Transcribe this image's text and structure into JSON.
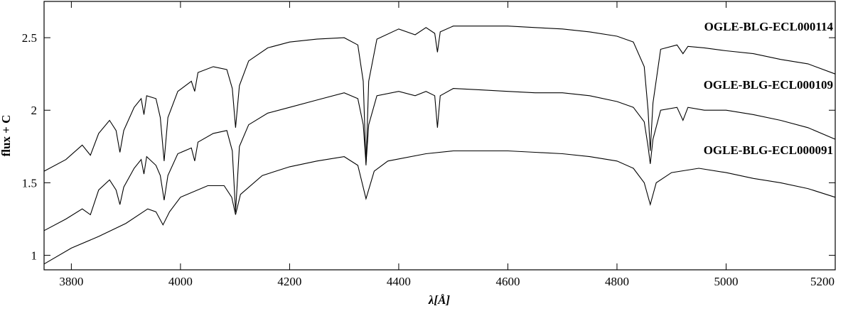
{
  "chart_data": {
    "type": "line",
    "xlabel": "λ[Å]",
    "ylabel": "flux + C",
    "xlim": [
      3750,
      5200
    ],
    "ylim": [
      0.9,
      2.75
    ],
    "xticks": [
      3800,
      4000,
      4200,
      4400,
      4600,
      4800,
      5000,
      5200
    ],
    "yticks": [
      1,
      1.5,
      2,
      2.5
    ],
    "series": [
      {
        "name": "OGLE-BLG-ECL000114",
        "color": "#000000",
        "x": [
          3750,
          3790,
          3820,
          3835,
          3850,
          3870,
          3882,
          3889,
          3896,
          3915,
          3928,
          3933,
          3938,
          3955,
          3963,
          3970,
          3977,
          3995,
          4020,
          4026,
          4032,
          4060,
          4085,
          4095,
          4101,
          4108,
          4125,
          4160,
          4200,
          4250,
          4300,
          4325,
          4335,
          4340,
          4345,
          4360,
          4400,
          4430,
          4450,
          4466,
          4471,
          4476,
          4500,
          4550,
          4600,
          4650,
          4700,
          4750,
          4800,
          4830,
          4850,
          4857,
          4861,
          4866,
          4880,
          4910,
          4921,
          4930,
          4960,
          5000,
          5050,
          5100,
          5150,
          5200
        ],
        "values": [
          1.58,
          1.66,
          1.76,
          1.69,
          1.84,
          1.93,
          1.86,
          1.71,
          1.86,
          2.02,
          2.08,
          1.97,
          2.1,
          2.08,
          1.95,
          1.65,
          1.95,
          2.13,
          2.2,
          2.13,
          2.26,
          2.3,
          2.28,
          2.15,
          1.88,
          2.17,
          2.34,
          2.43,
          2.47,
          2.49,
          2.5,
          2.45,
          2.2,
          1.62,
          2.2,
          2.49,
          2.56,
          2.52,
          2.57,
          2.53,
          2.4,
          2.54,
          2.58,
          2.58,
          2.58,
          2.57,
          2.56,
          2.54,
          2.51,
          2.47,
          2.3,
          2.0,
          1.72,
          2.05,
          2.42,
          2.45,
          2.39,
          2.44,
          2.43,
          2.41,
          2.39,
          2.35,
          2.32,
          2.25
        ]
      },
      {
        "name": "OGLE-BLG-ECL000109",
        "color": "#000000",
        "x": [
          3750,
          3790,
          3820,
          3835,
          3850,
          3870,
          3882,
          3889,
          3896,
          3915,
          3928,
          3933,
          3938,
          3955,
          3963,
          3970,
          3977,
          3995,
          4020,
          4026,
          4032,
          4060,
          4085,
          4095,
          4101,
          4108,
          4125,
          4160,
          4200,
          4250,
          4300,
          4325,
          4335,
          4340,
          4345,
          4360,
          4400,
          4430,
          4450,
          4466,
          4471,
          4476,
          4500,
          4550,
          4600,
          4650,
          4700,
          4750,
          4800,
          4830,
          4850,
          4857,
          4861,
          4866,
          4880,
          4910,
          4921,
          4930,
          4960,
          5000,
          5050,
          5100,
          5150,
          5200
        ],
        "values": [
          1.17,
          1.25,
          1.32,
          1.28,
          1.45,
          1.52,
          1.45,
          1.35,
          1.47,
          1.6,
          1.66,
          1.56,
          1.68,
          1.62,
          1.55,
          1.38,
          1.55,
          1.7,
          1.74,
          1.65,
          1.78,
          1.84,
          1.86,
          1.72,
          1.3,
          1.75,
          1.9,
          1.98,
          2.02,
          2.07,
          2.12,
          2.08,
          1.9,
          1.63,
          1.9,
          2.1,
          2.13,
          2.1,
          2.13,
          2.1,
          1.88,
          2.1,
          2.15,
          2.14,
          2.13,
          2.12,
          2.12,
          2.1,
          2.06,
          2.02,
          1.92,
          1.75,
          1.63,
          1.8,
          2.0,
          2.02,
          1.93,
          2.02,
          2.0,
          2.0,
          1.97,
          1.93,
          1.88,
          1.8
        ]
      },
      {
        "name": "OGLE-BLG-ECL000091",
        "color": "#000000",
        "x": [
          3750,
          3800,
          3850,
          3900,
          3940,
          3955,
          3968,
          3980,
          4000,
          4050,
          4080,
          4094,
          4101,
          4110,
          4150,
          4200,
          4250,
          4300,
          4325,
          4340,
          4355,
          4380,
          4450,
          4500,
          4550,
          4600,
          4650,
          4700,
          4750,
          4800,
          4830,
          4850,
          4861,
          4872,
          4900,
          4950,
          5000,
          5050,
          5100,
          5150,
          5200
        ],
        "values": [
          0.94,
          1.05,
          1.13,
          1.22,
          1.32,
          1.3,
          1.21,
          1.3,
          1.4,
          1.48,
          1.48,
          1.4,
          1.28,
          1.42,
          1.55,
          1.61,
          1.65,
          1.68,
          1.62,
          1.39,
          1.58,
          1.65,
          1.7,
          1.72,
          1.72,
          1.72,
          1.71,
          1.7,
          1.68,
          1.65,
          1.6,
          1.5,
          1.35,
          1.5,
          1.57,
          1.6,
          1.57,
          1.53,
          1.5,
          1.46,
          1.4
        ]
      }
    ]
  }
}
